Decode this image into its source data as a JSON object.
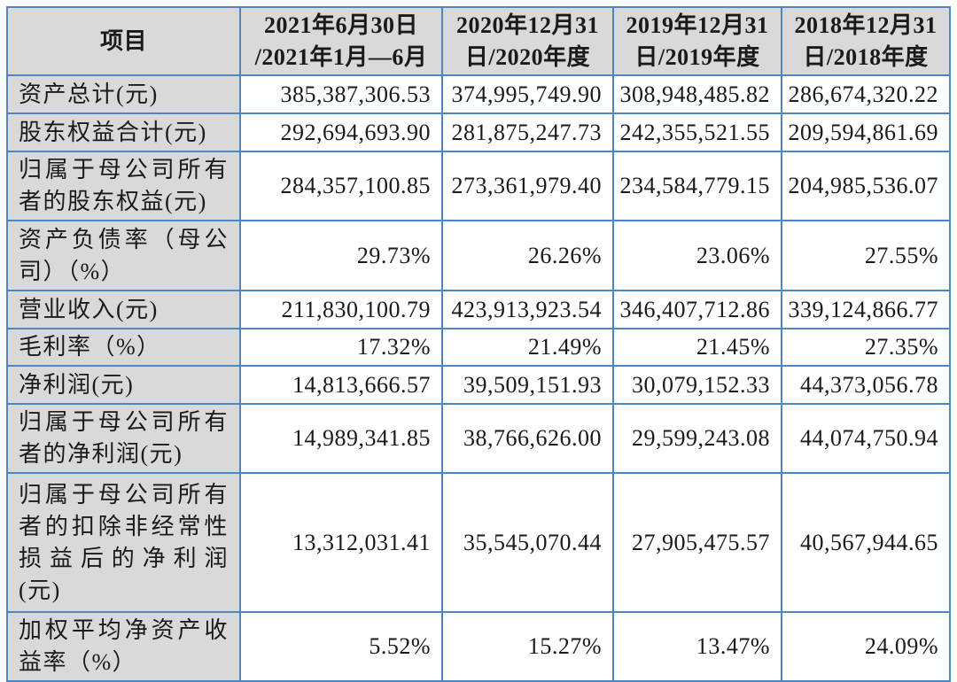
{
  "colors": {
    "border_blue": "#4e85c5",
    "header_bg": "#d9d9d9",
    "cell_bg": "#ffffff",
    "text": "#1a1a1a"
  },
  "table": {
    "columns": [
      "项目",
      "2021年6月30日\n/2021年1月—6月",
      "2020年12月31\n日/2020年度",
      "2019年12月31\n日/2019年度",
      "2018年12月31\n日/2018年度"
    ],
    "rows": [
      {
        "label": "资产总计(元)",
        "values": [
          "385,387,306.53",
          "374,995,749.90",
          "308,948,485.82",
          "286,674,320.22"
        ]
      },
      {
        "label": "股东权益合计(元)",
        "values": [
          "292,694,693.90",
          "281,875,247.73",
          "242,355,521.55",
          "209,594,861.69"
        ]
      },
      {
        "label": "归属于母公司所有者的股东权益(元)",
        "values": [
          "284,357,100.85",
          "273,361,979.40",
          "234,584,779.15",
          "204,985,536.07"
        ]
      },
      {
        "label": "资产负债率（母公司）（%）",
        "values": [
          "29.73%",
          "26.26%",
          "23.06%",
          "27.55%"
        ]
      },
      {
        "label": "营业收入(元)",
        "values": [
          "211,830,100.79",
          "423,913,923.54",
          "346,407,712.86",
          "339,124,866.77"
        ]
      },
      {
        "label": "毛利率（%）",
        "values": [
          "17.32%",
          "21.49%",
          "21.45%",
          "27.35%"
        ]
      },
      {
        "label": "净利润(元)",
        "values": [
          "14,813,666.57",
          "39,509,151.93",
          "30,079,152.33",
          "44,373,056.78"
        ]
      },
      {
        "label": "归属于母公司所有者的净利润(元)",
        "values": [
          "14,989,341.85",
          "38,766,626.00",
          "29,599,243.08",
          "44,074,750.94"
        ]
      },
      {
        "label": "归属于母公司所有者的扣除非经常性损益后的净利润(元)",
        "values": [
          "13,312,031.41",
          "35,545,070.44",
          "27,905,475.57",
          "40,567,944.65"
        ]
      },
      {
        "label": "加权平均净资产收益率（%）",
        "values": [
          "5.52%",
          "15.27%",
          "13.47%",
          "24.09%"
        ]
      }
    ]
  }
}
